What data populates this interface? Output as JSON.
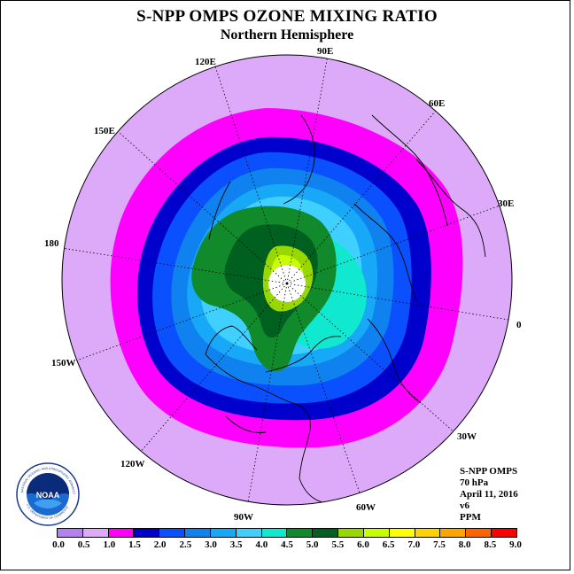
{
  "title": "S-NPP OMPS OZONE MIXING RATIO",
  "subtitle": "Northern Hemisphere",
  "longitude_labels": {
    "lon_90e": "90E",
    "lon_60e": "60E",
    "lon_30e": "30E",
    "lon_0": "0",
    "lon_30w": "30W",
    "lon_60w": "60W",
    "lon_90w": "90W",
    "lon_120w": "120W",
    "lon_150w": "150W",
    "lon_180": "180",
    "lon_150e": "150E",
    "lon_120e": "120E"
  },
  "info": {
    "instrument": "S-NPP OMPS",
    "level": "70 hPa",
    "date": "April 11, 2016",
    "version": "v6",
    "units": "PPM"
  },
  "logo": {
    "text": "NOAA",
    "ring_top": "NATIONAL OCEANIC AND ATMOSPHERIC ADMINISTRATION",
    "ring_bottom": "U.S. DEPARTMENT OF COMMERCE"
  },
  "colorbar": {
    "ticks": [
      "0.0",
      "0.5",
      "1.0",
      "1.5",
      "2.0",
      "2.5",
      "3.0",
      "3.5",
      "4.0",
      "4.5",
      "5.0",
      "5.5",
      "6.0",
      "6.5",
      "7.0",
      "7.5",
      "8.0",
      "8.5",
      "9.0"
    ],
    "colors": [
      "#b482f0",
      "#dcaaf8",
      "#ff00ff",
      "#0000cd",
      "#0a50ff",
      "#0f82f0",
      "#18a8f8",
      "#40d0ff",
      "#10e8d0",
      "#108a2a",
      "#006020",
      "#98d800",
      "#c8ff00",
      "#ffff00",
      "#ffd200",
      "#ffa500",
      "#ff6400",
      "#ff0000",
      "#8c5a32"
    ]
  },
  "map_data": {
    "projection": "north polar stereographic",
    "background_level_ppm": "0.5-1.0",
    "pole_no_data": true,
    "notes": "Zonal bands of ozone mixing ratio: 1.0-1.5 ring (magenta), 1.5-2.0 (dark blue), 2.0-3.5 (blues), 3.5-4.0 (cyan), 4.0-5.0 (greens), 5.0-6.0 (yellow-green) near pole"
  }
}
